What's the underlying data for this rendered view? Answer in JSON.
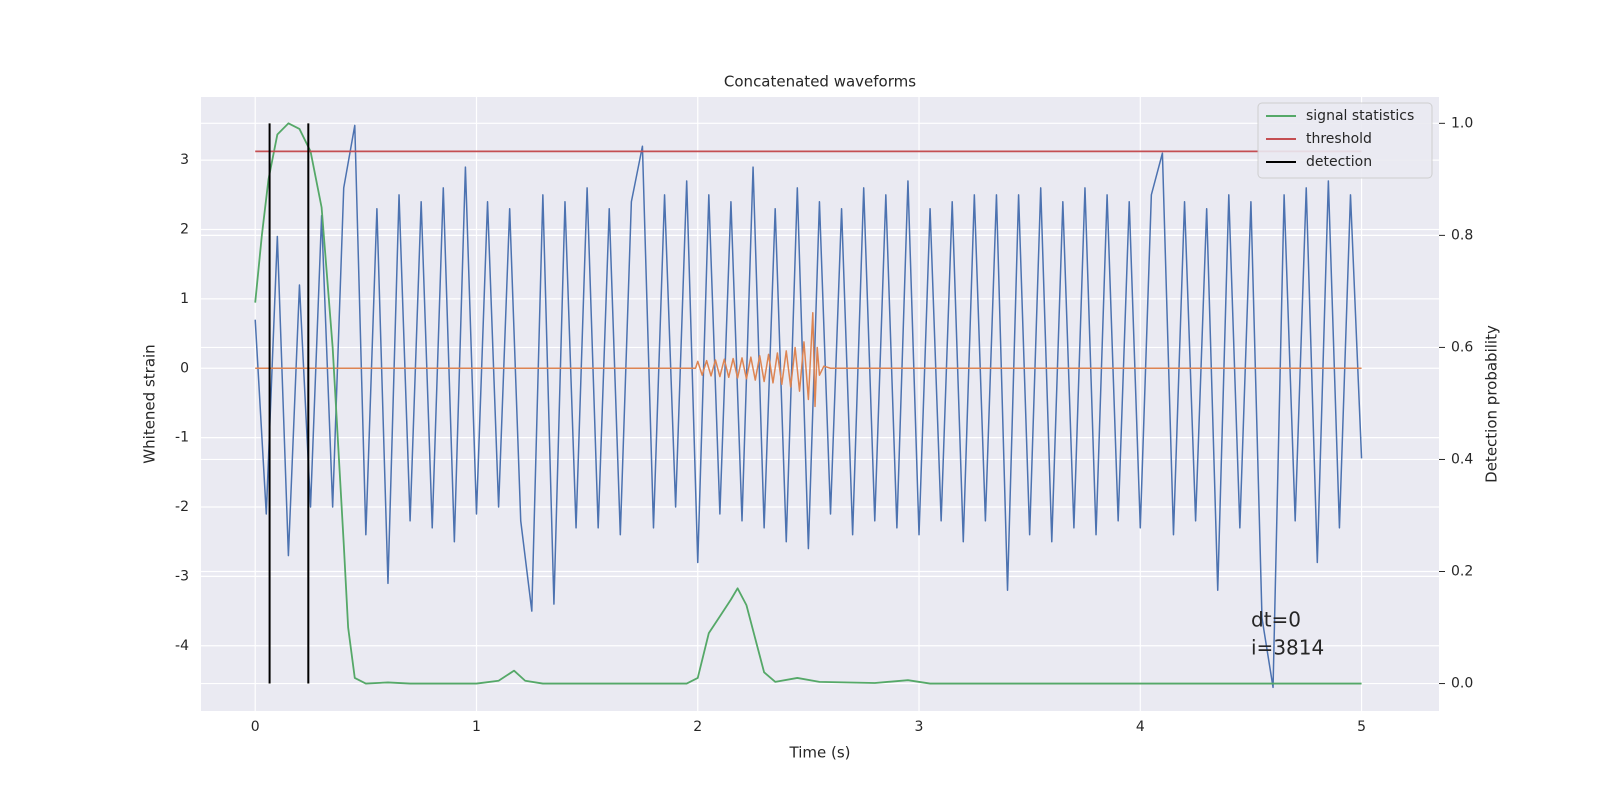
{
  "chart_data": {
    "type": "line",
    "title": "Concatenated waveforms",
    "x_label": "Time (s)",
    "y_label": "Whitened strain",
    "y2_label": "Detection probability",
    "xlim": [
      -0.245,
      5.35
    ],
    "ylim": [
      -4.94,
      3.91
    ],
    "y2lim": [
      -0.049,
      1.047
    ],
    "xticks": [
      0,
      1,
      2,
      3,
      4,
      5
    ],
    "yticks": [
      -4,
      -3,
      -2,
      -1,
      0,
      1,
      2,
      3
    ],
    "y2ticks": [
      {
        "value": 0,
        "label": "0.0"
      },
      {
        "value": 0.2,
        "label": "0.2"
      },
      {
        "value": 0.4,
        "label": "0.4"
      },
      {
        "value": 0.6,
        "label": "0.6"
      },
      {
        "value": 0.8,
        "label": "0.8"
      },
      {
        "value": 1,
        "label": "1.0"
      }
    ],
    "grid": true,
    "legend": "upper right",
    "series": [
      {
        "color": "#4c72b0",
        "x": [
          0,
          0.05,
          0.1,
          0.15,
          0.2,
          0.25,
          0.3,
          0.35,
          0.4,
          0.45,
          0.5,
          0.55,
          0.6,
          0.65,
          0.7,
          0.75,
          0.8,
          0.85,
          0.9,
          0.95,
          1,
          1.05,
          1.1,
          1.15,
          1.2,
          1.25,
          1.3,
          1.35,
          1.4,
          1.45,
          1.5,
          1.55,
          1.6,
          1.65,
          1.7,
          1.75,
          1.8,
          1.85,
          1.9,
          1.95,
          2,
          2.05,
          2.1,
          2.15,
          2.2,
          2.25,
          2.3,
          2.35,
          2.4,
          2.45,
          2.5,
          2.55,
          2.6,
          2.65,
          2.7,
          2.75,
          2.8,
          2.85,
          2.9,
          2.95,
          3,
          3.05,
          3.1,
          3.15,
          3.2,
          3.25,
          3.3,
          3.35,
          3.4,
          3.45,
          3.5,
          3.55,
          3.6,
          3.65,
          3.7,
          3.75,
          3.8,
          3.85,
          3.9,
          3.95,
          4,
          4.05,
          4.1,
          4.15,
          4.2,
          4.25,
          4.3,
          4.35,
          4.4,
          4.45,
          4.5,
          4.55,
          4.6,
          4.65,
          4.7,
          4.75,
          4.8,
          4.85,
          4.9,
          4.95,
          5
        ],
        "values": [
          0.7,
          -2.1,
          1.9,
          -2.7,
          1.2,
          -2.0,
          2.2,
          -2.0,
          2.6,
          3.5,
          -2.4,
          2.3,
          -3.1,
          2.5,
          -2.2,
          2.4,
          -2.3,
          2.6,
          -2.5,
          2.9,
          -2.1,
          2.4,
          -2.0,
          2.3,
          -2.2,
          -3.5,
          2.5,
          -3.4,
          2.4,
          -2.3,
          2.6,
          -2.3,
          2.3,
          -2.4,
          2.4,
          3.2,
          -2.3,
          2.5,
          -2.0,
          2.7,
          -2.8,
          2.5,
          -2.1,
          2.4,
          -2.2,
          2.9,
          -2.3,
          2.3,
          -2.5,
          2.6,
          -2.6,
          2.4,
          -2.1,
          2.3,
          -2.4,
          2.6,
          -2.2,
          2.5,
          -2.3,
          2.7,
          -2.4,
          2.3,
          -2.2,
          2.4,
          -2.5,
          2.5,
          -2.2,
          2.5,
          -3.2,
          2.5,
          -2.4,
          2.6,
          -2.5,
          2.4,
          -2.3,
          2.6,
          -2.4,
          2.5,
          -2.2,
          2.4,
          -2.3,
          2.5,
          3.1,
          -2.4,
          2.4,
          -2.2,
          2.3,
          -3.2,
          2.5,
          -2.3,
          2.4,
          -3.6,
          -4.6,
          2.5,
          -2.2,
          2.6,
          -2.8,
          2.7,
          -2.3,
          2.5,
          -1.3
        ]
      },
      {
        "color": "#dd8452",
        "x": [
          0,
          1.99,
          2.0,
          2.02,
          2.04,
          2.06,
          2.08,
          2.1,
          2.12,
          2.14,
          2.16,
          2.18,
          2.2,
          2.22,
          2.24,
          2.26,
          2.28,
          2.3,
          2.32,
          2.34,
          2.36,
          2.38,
          2.4,
          2.42,
          2.44,
          2.46,
          2.48,
          2.5,
          2.52,
          2.53,
          2.54,
          2.55,
          2.57,
          2.6,
          5
        ],
        "values": [
          0,
          0,
          0.1,
          -0.1,
          0.11,
          -0.11,
          0.12,
          -0.12,
          0.13,
          -0.13,
          0.14,
          -0.14,
          0.15,
          -0.15,
          0.16,
          -0.17,
          0.18,
          -0.19,
          0.2,
          -0.21,
          0.22,
          -0.23,
          0.25,
          -0.27,
          0.3,
          -0.33,
          0.38,
          -0.45,
          0.8,
          -0.55,
          0.3,
          -0.1,
          0.03,
          0,
          0
        ]
      },
      {
        "name": "signal statistics",
        "color": "#55a868",
        "axis": "y2",
        "x": [
          0,
          0.03,
          0.06,
          0.1,
          0.15,
          0.2,
          0.25,
          0.3,
          0.35,
          0.4,
          0.42,
          0.45,
          0.5,
          0.6,
          0.7,
          1.0,
          1.1,
          1.17,
          1.22,
          1.3,
          1.95,
          2.0,
          2.05,
          2.1,
          2.15,
          2.18,
          2.22,
          2.26,
          2.3,
          2.35,
          2.45,
          2.55,
          2.8,
          2.95,
          3.05,
          5
        ],
        "values": [
          0.68,
          0.8,
          0.9,
          0.98,
          1.0,
          0.99,
          0.95,
          0.85,
          0.6,
          0.25,
          0.1,
          0.01,
          0,
          0.002,
          0,
          0,
          0.005,
          0.023,
          0.005,
          0,
          0,
          0.01,
          0.09,
          0.12,
          0.15,
          0.17,
          0.14,
          0.08,
          0.02,
          0.003,
          0.01,
          0.003,
          0.001,
          0.006,
          0,
          0
        ]
      },
      {
        "name": "threshold",
        "color": "#c44e52",
        "axis": "y2",
        "x": [
          0,
          5
        ],
        "values": [
          0.95,
          0.95
        ]
      }
    ],
    "detection": {
      "name": "detection",
      "color": "#000000",
      "x": [
        0.065,
        0.24
      ],
      "ymin": 0,
      "ymax": 1
    },
    "annotation": [
      "dt=0",
      "i=3814"
    ]
  }
}
